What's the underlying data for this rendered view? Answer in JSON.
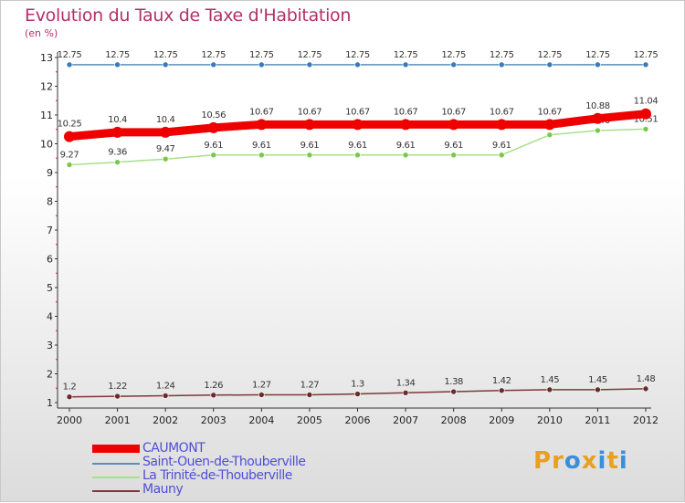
{
  "title": "Evolution du Taux de Taxe d'Habitation",
  "unit_label": "(en %)",
  "logo": {
    "text": "Proxiti",
    "colors": [
      "#e8a020",
      "#e8a020",
      "#3a8fd8",
      "#e8a020",
      "#3a8fd8",
      "#e8a020",
      "#3a8fd8"
    ]
  },
  "chart_data": {
    "type": "line",
    "title": "Evolution du Taux de Taxe d'Habitation",
    "ylabel": "(en %)",
    "xlabel": "",
    "x": [
      2000,
      2001,
      2002,
      2003,
      2004,
      2005,
      2006,
      2007,
      2008,
      2009,
      2010,
      2011,
      2012
    ],
    "ylim": [
      1,
      13
    ],
    "yticks": [
      1,
      2,
      3,
      4,
      5,
      6,
      7,
      8,
      9,
      10,
      11,
      12,
      13
    ],
    "grid": false,
    "legend_position": "bottom-left",
    "series": [
      {
        "name": "Saint-Ouen-de-Thouberville",
        "color": "#5b8fb8",
        "marker": "#3a7ab8",
        "values": [
          12.75,
          12.75,
          12.75,
          12.75,
          12.75,
          12.75,
          12.75,
          12.75,
          12.75,
          12.75,
          12.75,
          12.75,
          12.75
        ],
        "labels": [
          "12.75",
          "12.75",
          "12.75",
          "12.75",
          "12.75",
          "12.75",
          "12.75",
          "12.75",
          "12.75",
          "12.75",
          "12.75",
          "12.75",
          "12.75"
        ]
      },
      {
        "name": "La Trinité-de-Thouberville",
        "color": "#a8e08a",
        "marker": "#7ac84a",
        "values": [
          9.27,
          9.36,
          9.47,
          9.61,
          9.61,
          9.61,
          9.61,
          9.61,
          9.61,
          9.61,
          10.31,
          10.46,
          10.51
        ],
        "labels": [
          "9.27",
          "9.36",
          "9.47",
          "9.61",
          "9.61",
          "9.61",
          "9.61",
          "9.61",
          "9.61",
          "9.61",
          "10.31",
          "10.46",
          "10.51"
        ]
      },
      {
        "name": "Mauny",
        "color": "#7a3a3a",
        "marker": "#6a2a2a",
        "values": [
          1.2,
          1.22,
          1.24,
          1.26,
          1.27,
          1.27,
          1.3,
          1.34,
          1.38,
          1.42,
          1.45,
          1.45,
          1.48
        ],
        "labels": [
          "1.2",
          "1.22",
          "1.24",
          "1.26",
          "1.27",
          "1.27",
          "1.3",
          "1.34",
          "1.38",
          "1.42",
          "1.45",
          "1.45",
          "1.48"
        ]
      },
      {
        "name": "CAUMONT",
        "color": "#ee0000",
        "marker": "#ee0000",
        "values": [
          10.25,
          10.4,
          10.4,
          10.56,
          10.67,
          10.67,
          10.67,
          10.67,
          10.67,
          10.67,
          10.67,
          10.88,
          11.04
        ],
        "labels": [
          "10.25",
          "10.4",
          "10.4",
          "10.56",
          "10.67",
          "10.67",
          "10.67",
          "10.67",
          "10.67",
          "10.67",
          "10.67",
          "10.88",
          "11.04"
        ]
      }
    ]
  },
  "legend": [
    {
      "name": "CAUMONT",
      "color": "#ee0000"
    },
    {
      "name": "Saint-Ouen-de-Thouberville",
      "color": "#5b8fb8"
    },
    {
      "name": "La Trinité-de-Thouberville",
      "color": "#a8e08a"
    },
    {
      "name": "Mauny",
      "color": "#7a3a3a"
    }
  ]
}
